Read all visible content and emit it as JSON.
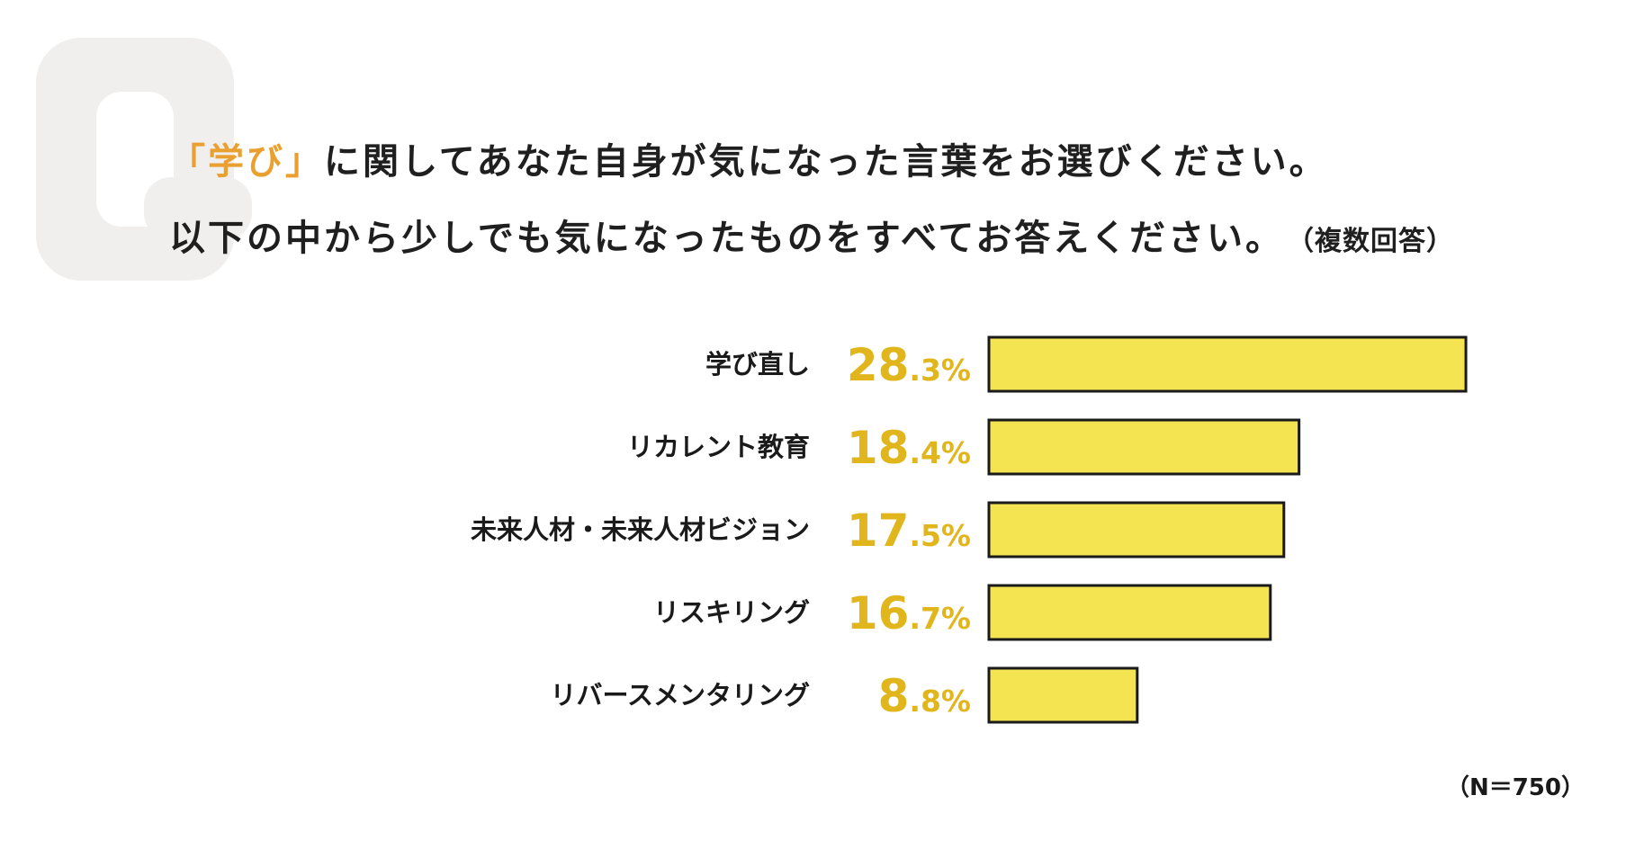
{
  "question": {
    "line1_open": "「",
    "line1_accent": "学び",
    "line1_close": "」",
    "line1_rest": "に関してあなた自身が気になった言葉をお選びください。",
    "line2": "以下の中から少しでも気になったものをすべてお答えください。",
    "note": "（複数回答）"
  },
  "sample_size": "（N＝750）",
  "colors": {
    "bar_fill": "#f5e451",
    "bar_stroke": "#1a1a1a",
    "value_text": "#e0b61c",
    "accent_text": "#e9a02f",
    "q_mark": "#f0efed"
  },
  "chart_data": {
    "type": "bar",
    "orientation": "horizontal",
    "categories": [
      "学び直し",
      "リカレント教育",
      "未来人材・未来人材ビジョン",
      "リスキリング",
      "リバースメンタリング"
    ],
    "values": [
      28.3,
      18.4,
      17.5,
      16.7,
      8.8
    ],
    "value_labels": [
      {
        "int": "28",
        "dec": ".3%"
      },
      {
        "int": "18",
        "dec": ".4%"
      },
      {
        "int": "17",
        "dec": ".5%"
      },
      {
        "int": "16",
        "dec": ".7%"
      },
      {
        "int": "8",
        "dec": ".8%"
      }
    ],
    "unit": "%",
    "grid": false,
    "legend": "none"
  }
}
